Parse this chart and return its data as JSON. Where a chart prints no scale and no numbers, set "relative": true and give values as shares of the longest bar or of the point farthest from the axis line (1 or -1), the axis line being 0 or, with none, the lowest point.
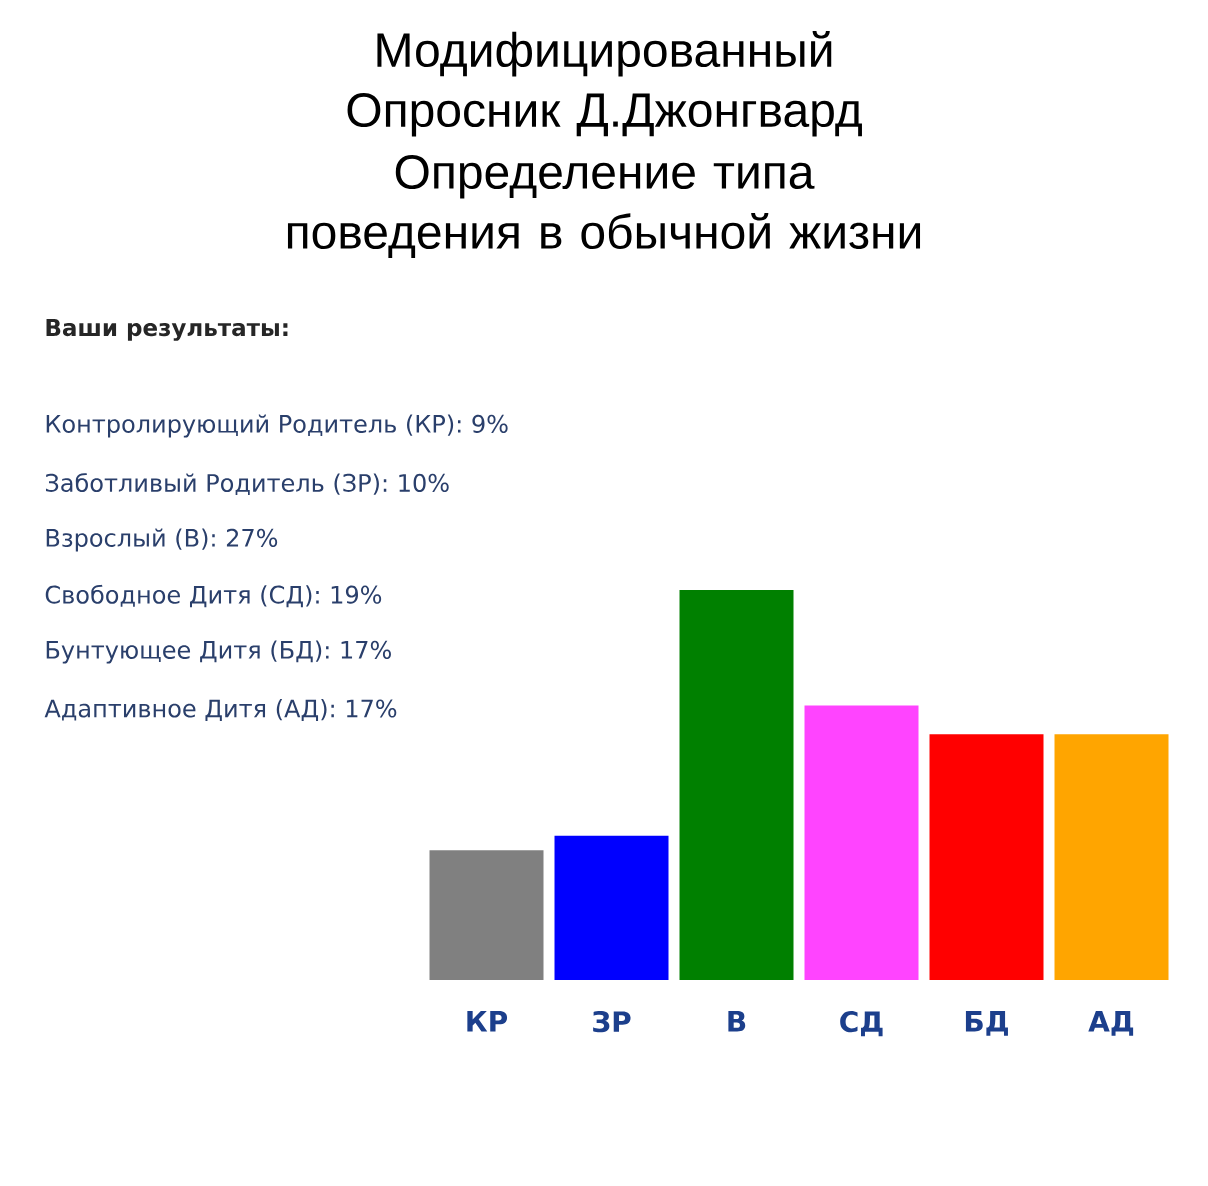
{
  "chart_data": {
    "type": "bar",
    "title": "Модифицированный Опросник Д.Джонгвард",
    "subtitle": "Определение типа поведения в обычной жизни",
    "categories": [
      "КР",
      "ЗР",
      "В",
      "СД",
      "БД",
      "АД"
    ],
    "values": [
      0.333,
      0.37,
      1,
      0.704,
      0.63,
      0.63
    ],
    "colors": [
      "#808080",
      "#0000ff",
      "#008000",
      "#ff44ff",
      "#ff0000",
      "#ffa500"
    ],
    "relative": true,
    "annotations": [
      "Ваши результаты:",
      "Контролирующий Родитель (КР): 9%",
      "Заботливый Родитель (ЗР): 10%",
      "Взрослый (В): 27%",
      "Свободное Дитя (СД): 19%",
      "Бунтующее Дитя (БД): 17%",
      "Адаптивное Дитя (АД): 17%"
    ]
  }
}
